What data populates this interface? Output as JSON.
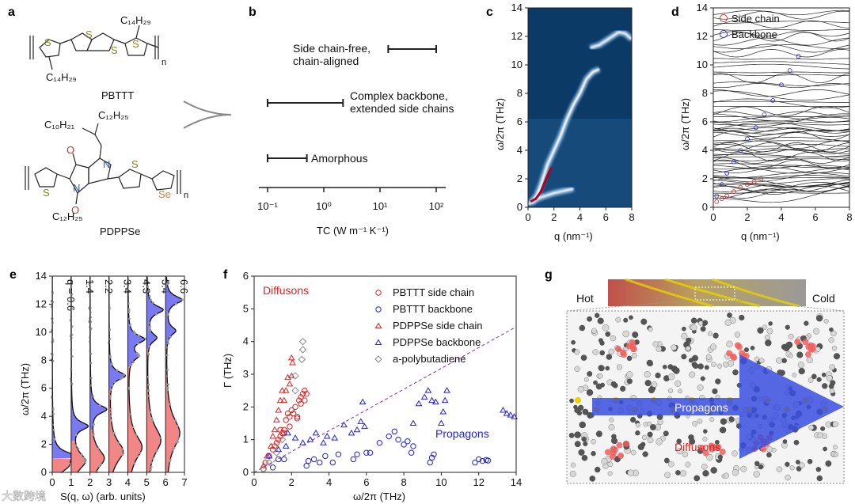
{
  "panel_labels": {
    "a": "a",
    "b": "b",
    "c": "c",
    "d": "d",
    "e": "e",
    "f": "f",
    "g": "g"
  },
  "panel_a": {
    "pbttt_name": "PBTTT",
    "pbttt_side_chain": "C₁₄H₂₉",
    "pdppse_name": "PDPPSe",
    "pdppse_branch_1": "C₁₀H₂₁",
    "pdppse_branch_2": "C₁₂H₂₅",
    "pdppse_side_chain_bottom": "C₁₂H₂₅",
    "sulfur": "S",
    "selenium": "Se",
    "nitrogen": "N",
    "oxygen": "O",
    "repeat": "n",
    "colors": {
      "sulfur": "#8a8a00",
      "selenium": "#e07b39",
      "nitrogen": "#1f4fbf",
      "oxygen": "#c0392b"
    }
  },
  "chart_data": [
    {
      "panel": "b",
      "type": "range",
      "xlabel": "TC (W m⁻¹ K⁻¹)",
      "xscale": "log",
      "xlim": [
        0.08,
        150
      ],
      "xticks": [
        "10⁻¹",
        "10⁰",
        "10¹",
        "10²"
      ],
      "xtick_values": [
        0.1,
        1,
        10,
        100
      ],
      "ranges": [
        {
          "label_line1": "Side chain-free,",
          "label_line2": "chain-aligned",
          "min": 14,
          "max": 100
        },
        {
          "label_line1": "Complex backbone,",
          "label_line2": "extended side chains",
          "min": 0.1,
          "max": 2.2
        },
        {
          "label_line1": "Amorphous",
          "label_line2": "",
          "min": 0.1,
          "max": 0.5
        }
      ]
    },
    {
      "panel": "c",
      "type": "heatmap",
      "xlabel": "q (nm⁻¹)",
      "ylabel": "ω/2π (THz)",
      "xlim": [
        0,
        8
      ],
      "ylim": [
        0,
        14
      ],
      "xticks": [
        "0",
        "2",
        "4",
        "6",
        "8"
      ],
      "yticks": [
        "0",
        "2",
        "4",
        "6",
        "8",
        "10",
        "12",
        "14"
      ],
      "branches": [
        {
          "q": [
            0,
            0.5,
            1,
            1.5,
            2,
            2.5,
            3,
            3.5
          ],
          "w": [
            0.2,
            0.5,
            0.7,
            0.85,
            1.0,
            1.1,
            1.2,
            1.3
          ]
        },
        {
          "q": [
            0.3,
            0.7,
            1,
            1.5,
            2,
            2.5,
            3,
            3.5,
            4,
            4.5,
            5,
            5.5
          ],
          "w": [
            0.3,
            0.9,
            1.6,
            3.0,
            4.0,
            5.0,
            6.2,
            7.2,
            8.0,
            9.0,
            9.5,
            9.7
          ]
        },
        {
          "q": [
            4.8,
            5.5,
            6,
            6.5,
            7,
            7.5,
            8
          ],
          "w": [
            11.2,
            11.4,
            11.7,
            12.0,
            12.3,
            12.2,
            11.8
          ]
        }
      ]
    },
    {
      "panel": "d",
      "type": "line",
      "xlabel": "q (nm⁻¹)",
      "ylabel": "ω/2π (THz)",
      "xlim": [
        0,
        8
      ],
      "ylim": [
        0,
        14
      ],
      "xticks": [
        "0",
        "2",
        "4",
        "6",
        "8"
      ],
      "yticks": [
        "0",
        "2",
        "4",
        "6",
        "8",
        "10",
        "12",
        "14"
      ],
      "legend": [
        {
          "name": "Side chain",
          "color": "#e03030"
        },
        {
          "name": "Backbone",
          "color": "#3030e0"
        }
      ],
      "legend_position": "top-left",
      "series": [
        {
          "name": "Side chain",
          "q": [
            0.2,
            0.5,
            0.8,
            1.2,
            1.6,
            2,
            2.4,
            2.8
          ],
          "w": [
            0.4,
            0.6,
            0.8,
            1.1,
            1.4,
            1.6,
            1.8,
            2.0
          ]
        },
        {
          "name": "Backbone",
          "q": [
            0.2,
            0.5,
            0.8,
            1.2,
            1.6,
            2,
            2.5,
            3,
            3.5,
            4,
            4.5,
            5
          ],
          "w": [
            0.8,
            1.6,
            2.4,
            3.2,
            4.0,
            4.8,
            5.6,
            6.5,
            7.5,
            8.6,
            9.6,
            10.6
          ]
        }
      ]
    },
    {
      "panel": "e",
      "type": "area",
      "xlabel": "S(q, ω) (arb. units)",
      "ylabel": "ω/2π (THz)",
      "xlim": [
        0,
        7
      ],
      "ylim": [
        0,
        14
      ],
      "xticks": [
        "0",
        "1",
        "2",
        "3",
        "4",
        "5",
        "6",
        "7"
      ],
      "yticks": [
        "0",
        "2",
        "4",
        "6",
        "8",
        "10",
        "12",
        "14"
      ],
      "q_prefix": "q = ",
      "columns": [
        {
          "q": "0.6",
          "diffuson_peak": 0.5,
          "propagon_peaks": [
            1.2
          ],
          "split": 1.0
        },
        {
          "q": "1.4",
          "diffuson_peak": 0.8,
          "propagon_peaks": [
            3.3
          ],
          "split": 2.2
        },
        {
          "q": "2.2",
          "diffuson_peak": 1.0,
          "propagon_peaks": [
            4.5
          ],
          "split": 3.0
        },
        {
          "q": "3.4",
          "diffuson_peak": 1.5,
          "propagon_peaks": [
            6.9
          ],
          "split": 5.8
        },
        {
          "q": "4.3",
          "diffuson_peak": 1.8,
          "propagon_peaks": [
            8.3,
            9.5
          ],
          "split": 7.5
        },
        {
          "q": "5.4",
          "diffuson_peak": 2.3,
          "propagon_peaks": [
            9.6,
            11.6
          ],
          "split": 8.8
        },
        {
          "q": "6.6",
          "diffuson_peak": 2.8,
          "propagon_peaks": [
            10.1,
            12.3
          ],
          "split": 9.0
        }
      ],
      "colors": {
        "diffuson": "#f07070",
        "propagon": "#6a6af0"
      }
    },
    {
      "panel": "f",
      "type": "scatter",
      "xlabel": "ω/2π (THz)",
      "ylabel": "Γ (THz)",
      "xlim": [
        0,
        14
      ],
      "ylim": [
        0,
        6
      ],
      "xticks": [
        "0",
        "2",
        "4",
        "6",
        "8",
        "10",
        "12",
        "14"
      ],
      "yticks": [
        "0",
        "1",
        "2",
        "3",
        "4",
        "5",
        "6"
      ],
      "annotations": {
        "diffusons": "Diffusons",
        "propagons": "Propagons"
      },
      "legend_position": "top-right",
      "reference_line": {
        "x": [
          0,
          14
        ],
        "y": [
          0,
          4.45
        ],
        "style": "dashed",
        "color": "#8a2d9a"
      },
      "series": [
        {
          "name": "PBTTT side chain",
          "marker": "circle",
          "color": "#e02020",
          "x": [
            0.5,
            0.6,
            0.8,
            1.0,
            1.1,
            1.2,
            1.3,
            1.4,
            1.5,
            1.6,
            1.7,
            1.8,
            1.9,
            2.0,
            2.1,
            2.2,
            2.3,
            2.4,
            2.5,
            2.6,
            2.7,
            2.8,
            2.5,
            2.7,
            1.9,
            2.3,
            1.6,
            1.4
          ],
          "y": [
            0.1,
            0.3,
            0.5,
            0.7,
            0.8,
            0.9,
            1.0,
            1.1,
            1.2,
            1.3,
            1.6,
            1.8,
            1.7,
            1.9,
            1.8,
            2.0,
            1.7,
            2.2,
            2.3,
            2.4,
            2.5,
            2.4,
            2.1,
            2.2,
            1.4,
            1.65,
            1.2,
            1.3
          ]
        },
        {
          "name": "PBTTT backbone",
          "marker": "circle",
          "color": "#2020e0",
          "x": [
            1.0,
            1.3,
            1.6,
            2.8,
            2.9,
            3.2,
            3.5,
            3.8,
            4.2,
            4.5,
            5.3,
            5.5,
            6.0,
            6.2,
            6.7,
            7.2,
            7.5,
            7.7,
            8.0,
            8.2,
            8.4,
            8.5,
            9.4,
            9.5,
            9.6,
            11.8,
            12.0,
            12.2,
            12.4,
            12.5
          ],
          "y": [
            0.15,
            0.4,
            0.4,
            0.2,
            0.35,
            0.4,
            0.3,
            0.5,
            0.3,
            0.55,
            0.4,
            0.55,
            0.6,
            0.6,
            0.9,
            1.1,
            1.25,
            1.0,
            0.85,
            0.95,
            0.6,
            0.8,
            0.3,
            0.45,
            0.55,
            0.3,
            0.4,
            0.35,
            0.38,
            0.36
          ]
        },
        {
          "name": "PDPPSe side chain",
          "marker": "triangle",
          "color": "#e02020",
          "x": [
            0.5,
            0.7,
            0.9,
            1.0,
            1.1,
            1.2,
            1.3,
            1.4,
            1.5,
            1.6,
            1.7,
            1.8,
            1.9,
            2.0,
            2.05,
            2.0
          ],
          "y": [
            0.2,
            0.5,
            0.8,
            1.1,
            1.3,
            1.6,
            1.9,
            2.2,
            2.5,
            2.2,
            2.5,
            2.9,
            2.7,
            3.5,
            3.35,
            2.95
          ]
        },
        {
          "name": "PDPPSe backbone",
          "marker": "triangle",
          "color": "#2020e0",
          "x": [
            0.8,
            1.3,
            1.7,
            1.8,
            2.2,
            2.6,
            3.0,
            3.3,
            3.7,
            3.9,
            4.3,
            4.8,
            5.2,
            5.5,
            5.7,
            5.8,
            5.9,
            8.5,
            8.8,
            9.1,
            9.3,
            9.5,
            9.7,
            10.0,
            10.1,
            10.2,
            10.3,
            13.3,
            13.5,
            13.7,
            13.9
          ],
          "y": [
            0.5,
            0.7,
            0.8,
            1.2,
            1.05,
            0.9,
            1.0,
            1.2,
            0.9,
            1.1,
            1.05,
            1.45,
            1.2,
            1.3,
            1.55,
            2.15,
            1.4,
            1.5,
            2.1,
            2.3,
            2.5,
            2.2,
            2.15,
            1.5,
            1.85,
            2.2,
            2.5,
            1.9,
            1.8,
            1.75,
            1.7
          ]
        },
        {
          "name": "a-polybutadiene",
          "marker": "diamond",
          "color": "#888888",
          "x": [
            0.5,
            0.8,
            1.2,
            1.5,
            2.2,
            2.2,
            2.55,
            2.6,
            2.6
          ],
          "y": [
            0.1,
            0.3,
            0.6,
            1.0,
            2.5,
            2.95,
            3.45,
            3.75,
            4.0
          ]
        }
      ]
    }
  ],
  "panel_g": {
    "hot_label": "Hot",
    "cold_label": "Cold",
    "propagons_label": "Propagons",
    "diffusons_label": "Diffusons"
  },
  "watermark": "大数跨境"
}
